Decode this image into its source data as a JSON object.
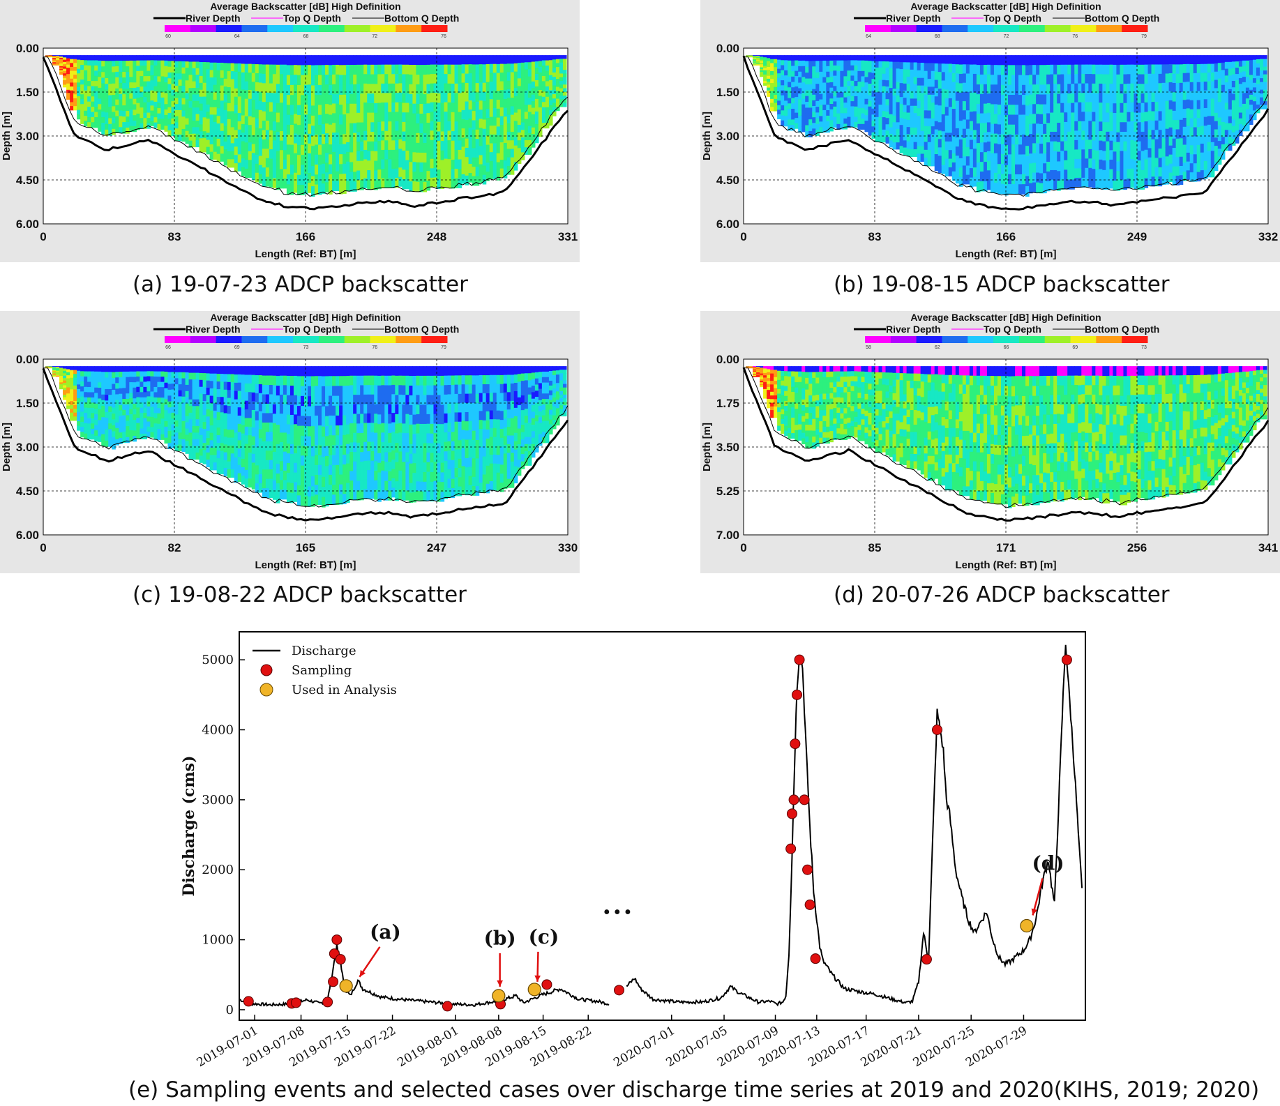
{
  "panels": [
    {
      "id": "a",
      "caption": "(a) 19-07-23 ADCP backscatter",
      "title": "Average Backscatter [dB] High Definition",
      "legend": [
        "River Depth",
        "Top Q Depth",
        "Bottom Q Depth"
      ],
      "colorbar_ticks": [
        "60",
        "64",
        "68",
        "72",
        "76"
      ],
      "y_ticks": [
        "0.00",
        "1.50",
        "3.00",
        "4.50",
        "6.00"
      ],
      "x_ticks": [
        "0",
        "83",
        "166",
        "248",
        "331"
      ],
      "ylabel": "Depth [m]",
      "xlabel": "Length (Ref: BT) [m]"
    },
    {
      "id": "b",
      "caption": "(b) 19-08-15 ADCP backscatter",
      "title": "Average Backscatter [dB] High Definition",
      "legend": [
        "River Depth",
        "Top Q Depth",
        "Bottom Q Depth"
      ],
      "colorbar_ticks": [
        "64",
        "68",
        "72",
        "76",
        "79"
      ],
      "y_ticks": [
        "0.00",
        "1.50",
        "3.00",
        "4.50",
        "6.00"
      ],
      "x_ticks": [
        "0",
        "83",
        "166",
        "249",
        "332"
      ],
      "ylabel": "Depth [m]",
      "xlabel": "Length (Ref: BT) [m]"
    },
    {
      "id": "c",
      "caption": "(c) 19-08-22 ADCP backscatter",
      "title": "Average Backscatter [dB] High Definition",
      "legend": [
        "River Depth",
        "Top Q Depth",
        "Bottom Q Depth"
      ],
      "colorbar_ticks": [
        "66",
        "69",
        "73",
        "76",
        "79"
      ],
      "y_ticks": [
        "0.00",
        "1.50",
        "3.00",
        "4.50",
        "6.00"
      ],
      "x_ticks": [
        "0",
        "82",
        "165",
        "247",
        "330"
      ],
      "ylabel": "Depth [m]",
      "xlabel": "Length (Ref: BT) [m]"
    },
    {
      "id": "d",
      "caption": "(d) 20-07-26 ADCP backscatter",
      "title": "Average Backscatter [dB] High Definition",
      "legend": [
        "River Depth",
        "Top Q Depth",
        "Bottom Q Depth"
      ],
      "colorbar_ticks": [
        "58",
        "62",
        "66",
        "69",
        "73"
      ],
      "y_ticks": [
        "0.00",
        "1.75",
        "3.50",
        "5.25",
        "7.00"
      ],
      "x_ticks": [
        "0",
        "85",
        "171",
        "256",
        "341"
      ],
      "ylabel": "Depth [m]",
      "xlabel": "Length (Ref: BT) [m]"
    }
  ],
  "chart_data": {
    "type": "line",
    "caption": "(e) Sampling events and selected cases over discharge time series at 2019 and 2020(KIHS, 2019; 2020)",
    "ylabel": "Discharge (cms)",
    "ylim": [
      -150,
      5400
    ],
    "y_ticks": [
      "0",
      "1000",
      "2000",
      "3000",
      "4000",
      "5000"
    ],
    "x_ticks": [
      "2019-07-01",
      "2019-07-08",
      "2019-07-15",
      "2019-07-22",
      "2019-08-01",
      "2019-08-08",
      "2019-08-15",
      "2019-08-22",
      "2020-07-01",
      "2020-07-05",
      "2020-07-09",
      "2020-07-13",
      "2020-07-17",
      "2020-07-21",
      "2020-07-25",
      "2020-07-29"
    ],
    "legend": [
      "Discharge",
      "Sampling",
      "Used in Analysis"
    ],
    "break_marker": "• • •",
    "colors": {
      "line": "#000000",
      "sampling": "#e01010",
      "used": "#f0b428"
    },
    "series": [
      {
        "name": "Discharge",
        "values": [
          [
            0,
            150
          ],
          [
            1.5,
            90
          ],
          [
            5,
            70
          ],
          [
            8,
            80
          ],
          [
            11,
            140
          ],
          [
            13,
            90
          ],
          [
            14.3,
            130
          ],
          [
            15.2,
            600
          ],
          [
            15.8,
            900
          ],
          [
            16.4,
            700
          ],
          [
            17,
            300
          ],
          [
            18,
            200
          ],
          [
            19.2,
            420
          ],
          [
            20,
            300
          ],
          [
            23,
            180
          ],
          [
            27,
            140
          ],
          [
            31,
            110
          ],
          [
            35,
            80
          ],
          [
            38,
            70
          ],
          [
            40,
            100
          ],
          [
            42,
            120
          ],
          [
            44.8,
            200
          ],
          [
            46,
            100
          ],
          [
            49,
            210
          ],
          [
            52,
            300
          ],
          [
            55,
            150
          ],
          [
            58,
            120
          ],
          [
            60,
            80
          ],
          [
            64,
            450
          ],
          [
            65,
            300
          ],
          [
            67,
            150
          ],
          [
            71,
            110
          ],
          [
            75,
            110
          ],
          [
            78,
            170
          ],
          [
            79.5,
            330
          ],
          [
            81,
            240
          ],
          [
            84,
            110
          ],
          [
            86,
            120
          ],
          [
            87,
            80
          ],
          [
            88,
            110
          ],
          [
            88.5,
            200
          ],
          [
            89,
            800
          ],
          [
            89.5,
            2200
          ],
          [
            90,
            3800
          ],
          [
            90.3,
            4600
          ],
          [
            90.7,
            5100
          ],
          [
            91.2,
            4900
          ],
          [
            91.8,
            3700
          ],
          [
            92.4,
            2600
          ],
          [
            93,
            1700
          ],
          [
            93.5,
            1300
          ],
          [
            94,
            900
          ],
          [
            94.5,
            700
          ],
          [
            96,
            500
          ],
          [
            98,
            300
          ],
          [
            101,
            250
          ],
          [
            103,
            220
          ],
          [
            105,
            170
          ],
          [
            107,
            120
          ],
          [
            108,
            100
          ],
          [
            109,
            120
          ],
          [
            110,
            400
          ],
          [
            110.8,
            1100
          ],
          [
            111.6,
            700
          ],
          [
            112.5,
            3000
          ],
          [
            113,
            4250
          ],
          [
            113.5,
            4000
          ],
          [
            114,
            3700
          ],
          [
            114.5,
            3000
          ],
          [
            115,
            2800
          ],
          [
            116,
            2000
          ],
          [
            117,
            1600
          ],
          [
            118,
            1300
          ],
          [
            119,
            1100
          ],
          [
            120,
            1250
          ],
          [
            121,
            1400
          ],
          [
            122,
            1000
          ],
          [
            123,
            750
          ],
          [
            124,
            650
          ],
          [
            125,
            700
          ],
          [
            127,
            850
          ],
          [
            128,
            1000
          ],
          [
            129,
            1300
          ],
          [
            130,
            1800
          ],
          [
            131,
            2150
          ],
          [
            131.5,
            1800
          ],
          [
            132,
            1500
          ],
          [
            132.8,
            3200
          ],
          [
            133.4,
            4500
          ],
          [
            133.8,
            5250
          ],
          [
            134.3,
            4600
          ],
          [
            134.8,
            4000
          ],
          [
            135.4,
            3200
          ],
          [
            136,
            2300
          ],
          [
            136.6,
            1500
          ]
        ]
      }
    ],
    "sampling": [
      [
        1.5,
        120
      ],
      [
        8.5,
        90
      ],
      [
        9.2,
        100
      ],
      [
        14.3,
        110
      ],
      [
        15.2,
        400
      ],
      [
        15.4,
        800
      ],
      [
        15.8,
        1000
      ],
      [
        16.4,
        720
      ],
      [
        33.7,
        50
      ],
      [
        42.3,
        80
      ],
      [
        49.8,
        360
      ],
      [
        61.5,
        280
      ],
      [
        89.3,
        2300
      ],
      [
        89.5,
        2800
      ],
      [
        89.8,
        3000
      ],
      [
        90,
        3800
      ],
      [
        90.3,
        4500
      ],
      [
        90.7,
        5000
      ],
      [
        91.5,
        3000
      ],
      [
        92,
        2000
      ],
      [
        92.4,
        1500
      ],
      [
        93.3,
        730
      ],
      [
        111.3,
        720
      ],
      [
        113,
        4000
      ],
      [
        134,
        5000
      ]
    ],
    "used": [
      [
        17.3,
        340
      ],
      [
        42,
        200
      ],
      [
        47.8,
        290
      ],
      [
        127.5,
        1200
      ]
    ],
    "annotations": [
      {
        "label": "(a)",
        "x": 18.8,
        "y": 350
      },
      {
        "label": "(b)",
        "x": 42.2,
        "y": 210
      },
      {
        "label": "(c)",
        "x": 47.6,
        "y": 280
      },
      {
        "label": "(d)",
        "x": 127.8,
        "y": 1230
      }
    ]
  }
}
